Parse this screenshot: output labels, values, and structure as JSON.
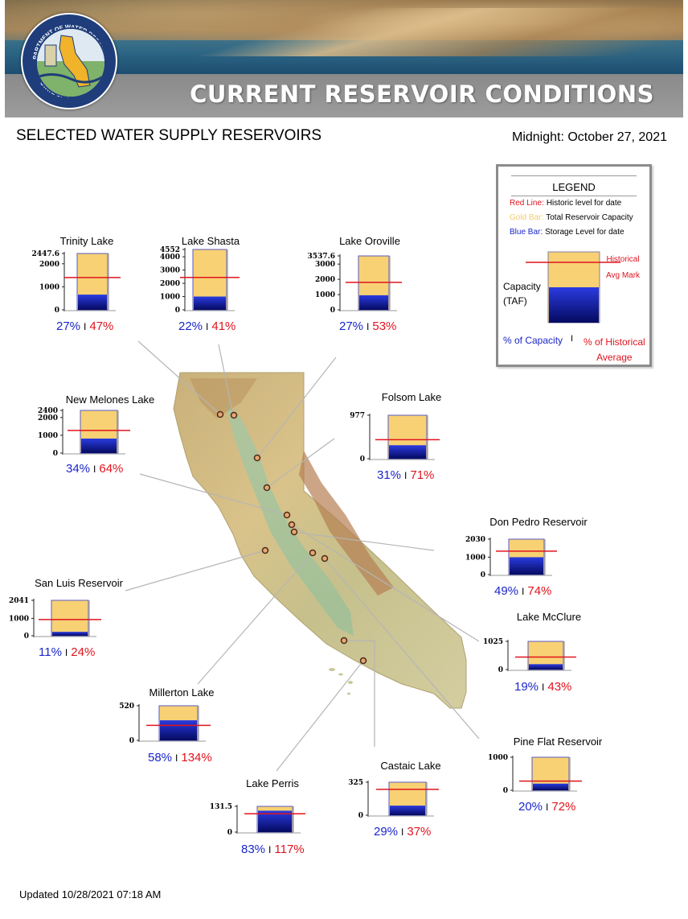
{
  "header": {
    "title": "CURRENT RESERVOIR CONDITIONS",
    "seal_text_top": "DEPARTMENT OF WATER RESOURCES",
    "seal_text_bottom": "STATE OF CALIFORNIA",
    "section_title": "SELECTED WATER SUPPLY RESERVOIRS",
    "timestamp": "Midnight: October 27, 2021"
  },
  "legend": {
    "title": "LEGEND",
    "items": [
      {
        "key": "Red Line:",
        "text": "Historic level for date",
        "color": "#e0141e"
      },
      {
        "key": "Gold Bar:",
        "text": "Total Reservoir Capacity",
        "color": "#f3cc6f"
      },
      {
        "key": "Blue Bar:",
        "text": "Storage Level for date",
        "color": "#1a26c8"
      }
    ],
    "capacity_label_1": "Capacity",
    "capacity_label_2": "(TAF)",
    "historical_1": "Historical",
    "historical_2": "Avg Mark",
    "pct_capacity": "% of Capacity",
    "separator": "I",
    "pct_historical_1": "% of Historical",
    "pct_historical_2": "Average"
  },
  "colors": {
    "capacity_fill": "#f7d174",
    "storage_fill": "#0b128e",
    "historical_line": "#e0141e",
    "capacity_text": "#1a26c8",
    "historical_text": "#e0141e"
  },
  "reservoirs": [
    {
      "name": "Trinity Lake",
      "capacity_taf": 2447.6,
      "ticks": [
        "2447.6",
        "2000",
        "1000",
        "0"
      ],
      "pct_capacity": "27%",
      "pct_historical": "47%",
      "storage_fraction": 0.27,
      "historical_fraction": 0.574
    },
    {
      "name": "Lake Shasta",
      "capacity_taf": 4552,
      "ticks": [
        "4552",
        "4000",
        "3000",
        "2000",
        "1000",
        "0"
      ],
      "pct_capacity": "22%",
      "pct_historical": "41%",
      "storage_fraction": 0.22,
      "historical_fraction": 0.537
    },
    {
      "name": "Lake Oroville",
      "capacity_taf": 3537.6,
      "ticks": [
        "3537.6",
        "3000",
        "2000",
        "1000",
        "0"
      ],
      "pct_capacity": "27%",
      "pct_historical": "53%",
      "storage_fraction": 0.27,
      "historical_fraction": 0.509
    },
    {
      "name": "New Melones Lake",
      "capacity_taf": 2400,
      "ticks": [
        "2400",
        "2000",
        "1000",
        "0"
      ],
      "pct_capacity": "34%",
      "pct_historical": "64%",
      "storage_fraction": 0.34,
      "historical_fraction": 0.531
    },
    {
      "name": "Folsom Lake",
      "capacity_taf": 977,
      "ticks": [
        "977",
        "0"
      ],
      "pct_capacity": "31%",
      "pct_historical": "71%",
      "storage_fraction": 0.31,
      "historical_fraction": 0.437
    },
    {
      "name": "Don Pedro Reservoir",
      "capacity_taf": 2030,
      "ticks": [
        "2030",
        "1000",
        "0"
      ],
      "pct_capacity": "49%",
      "pct_historical": "74%",
      "storage_fraction": 0.49,
      "historical_fraction": 0.662
    },
    {
      "name": "San Luis Reservoir",
      "capacity_taf": 2041,
      "ticks": [
        "2041",
        "1000",
        "0"
      ],
      "pct_capacity": "11%",
      "pct_historical": "24%",
      "storage_fraction": 0.11,
      "historical_fraction": 0.458
    },
    {
      "name": "Lake McClure",
      "capacity_taf": 1025,
      "ticks": [
        "1025",
        "0"
      ],
      "pct_capacity": "19%",
      "pct_historical": "43%",
      "storage_fraction": 0.19,
      "historical_fraction": 0.442
    },
    {
      "name": "Millerton Lake",
      "capacity_taf": 520,
      "ticks": [
        "520",
        "0"
      ],
      "pct_capacity": "58%",
      "pct_historical": "134%",
      "storage_fraction": 0.58,
      "historical_fraction": 0.433
    },
    {
      "name": "Pine Flat Reservoir",
      "capacity_taf": 1000,
      "ticks": [
        "1000",
        "0"
      ],
      "pct_capacity": "20%",
      "pct_historical": "72%",
      "storage_fraction": 0.2,
      "historical_fraction": 0.278
    },
    {
      "name": "Castaic Lake",
      "capacity_taf": 325,
      "ticks": [
        "325",
        "0"
      ],
      "pct_capacity": "29%",
      "pct_historical": "37%",
      "storage_fraction": 0.29,
      "historical_fraction": 0.784
    },
    {
      "name": "Lake Perris",
      "capacity_taf": 131.5,
      "ticks": [
        "131.5",
        "0"
      ],
      "pct_capacity": "83%",
      "pct_historical": "117%",
      "storage_fraction": 0.83,
      "historical_fraction": 0.709
    }
  ],
  "footer": {
    "updated": "Updated 10/28/2021 07:18 AM"
  }
}
